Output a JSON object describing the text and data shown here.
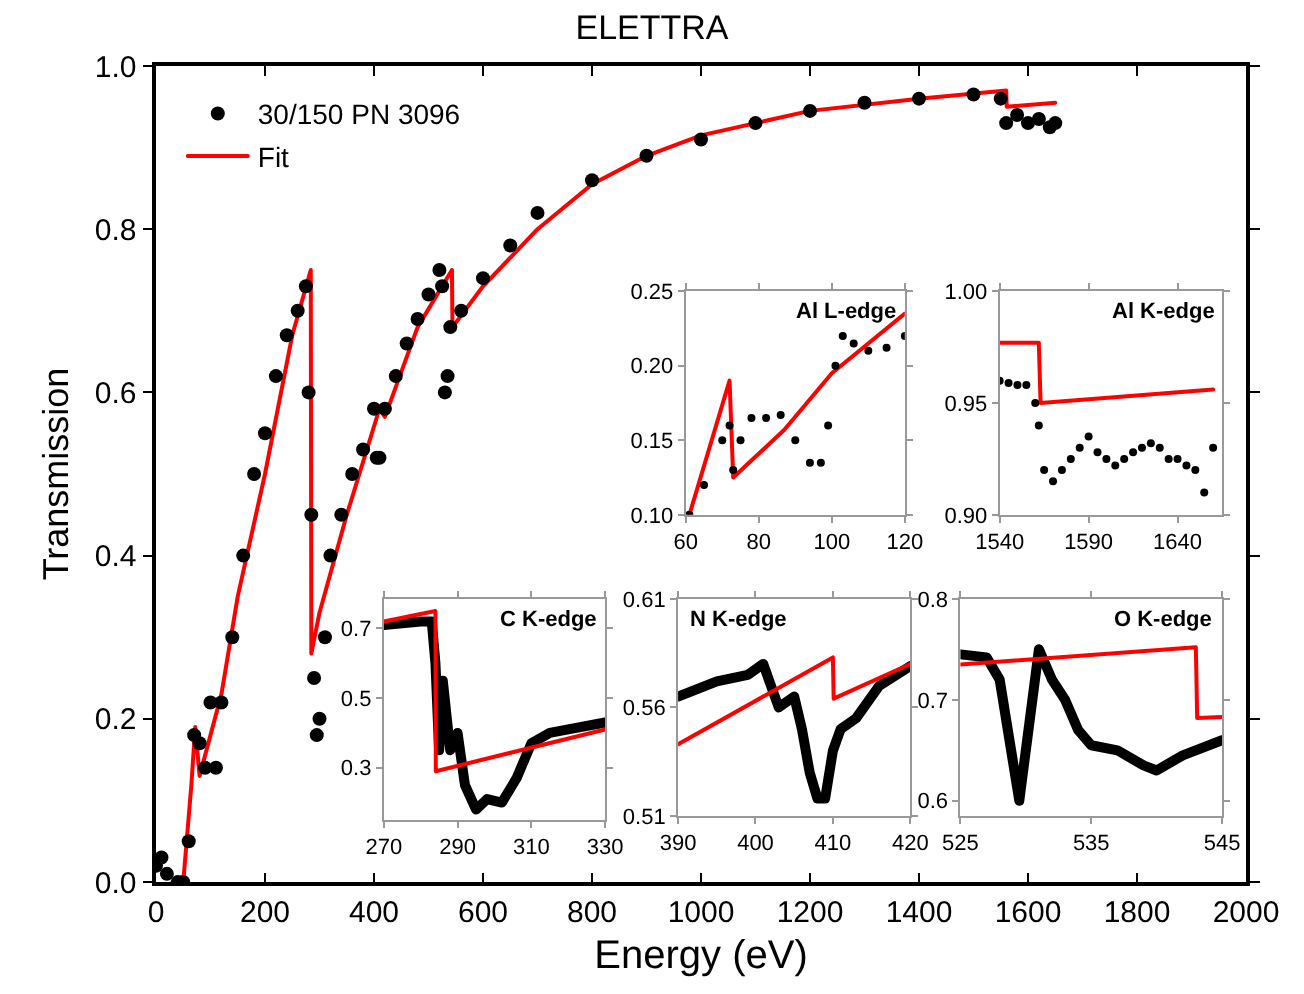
{
  "chart_data": [
    {
      "type": "scatter",
      "title": "ELETTRA",
      "xlabel": "Energy (eV)",
      "ylabel": "Transmission",
      "legend": "top left",
      "grid": false,
      "xlim": [
        0,
        2000
      ],
      "ylim": [
        0,
        1.0
      ],
      "xticks": [
        0,
        200,
        400,
        600,
        800,
        1000,
        1200,
        1400,
        1600,
        1800,
        2000
      ],
      "yticks": [
        {
          "value": 0,
          "label": "0.0"
        },
        0.2,
        0.4,
        0.6,
        0.8,
        {
          "value": 1.0,
          "label": "1.0"
        }
      ],
      "series": [
        {
          "name": "30/150 PN 3096",
          "marker": "circle",
          "color": "#000000",
          "x": [
            0,
            10,
            20,
            40,
            50,
            60,
            70,
            80,
            90,
            100,
            110,
            120,
            140,
            160,
            180,
            200,
            220,
            240,
            260,
            275,
            280,
            285,
            290,
            295,
            300,
            310,
            320,
            340,
            360,
            380,
            400,
            405,
            410,
            420,
            440,
            460,
            480,
            500,
            520,
            525,
            530,
            535,
            540,
            560,
            600,
            650,
            700,
            800,
            900,
            1000,
            1100,
            1200,
            1300,
            1400,
            1500,
            1550,
            1560,
            1580,
            1600,
            1620,
            1640,
            1650
          ],
          "values": [
            0.02,
            0.03,
            0.01,
            0.0,
            0.0,
            0.05,
            0.18,
            0.17,
            0.14,
            0.22,
            0.14,
            0.22,
            0.3,
            0.4,
            0.5,
            0.55,
            0.62,
            0.67,
            0.7,
            0.73,
            0.6,
            0.45,
            0.25,
            0.18,
            0.2,
            0.3,
            0.4,
            0.45,
            0.5,
            0.53,
            0.58,
            0.52,
            0.52,
            0.58,
            0.62,
            0.66,
            0.69,
            0.72,
            0.75,
            0.73,
            0.6,
            0.62,
            0.68,
            0.7,
            0.74,
            0.78,
            0.82,
            0.86,
            0.89,
            0.91,
            0.93,
            0.945,
            0.955,
            0.96,
            0.965,
            0.96,
            0.93,
            0.94,
            0.93,
            0.935,
            0.925,
            0.93
          ]
        },
        {
          "name": "Fit",
          "type": "line",
          "color": "#ff0000",
          "x": [
            30,
            50,
            65,
            72,
            80,
            100,
            120,
            150,
            200,
            250,
            284,
            285,
            300,
            350,
            410,
            420,
            480,
            543,
            544,
            600,
            700,
            800,
            900,
            1000,
            1200,
            1400,
            1560,
            1561,
            1650
          ],
          "values": [
            0.0,
            0.0,
            0.12,
            0.19,
            0.13,
            0.18,
            0.23,
            0.35,
            0.5,
            0.67,
            0.75,
            0.28,
            0.33,
            0.45,
            0.58,
            0.57,
            0.68,
            0.75,
            0.68,
            0.73,
            0.8,
            0.855,
            0.89,
            0.915,
            0.945,
            0.96,
            0.97,
            0.95,
            0.955
          ]
        }
      ]
    },
    {
      "type": "scatter",
      "title": "Al L-edge",
      "grid": false,
      "xlim": [
        60,
        120
      ],
      "ylim": [
        0.1,
        0.25
      ],
      "xticks": [
        60,
        80,
        100,
        120
      ],
      "yticks": [
        {
          "value": 0.1,
          "label": "0.10"
        },
        0.15,
        {
          "value": 0.2,
          "label": "0.20"
        },
        0.25
      ],
      "series": [
        {
          "marker": "circle",
          "color": "#000000",
          "x": [
            61,
            65,
            70,
            72,
            73,
            75,
            78,
            82,
            86,
            90,
            94,
            97,
            99,
            101,
            103,
            106,
            110,
            115,
            120
          ],
          "values": [
            0.1,
            0.12,
            0.15,
            0.16,
            0.13,
            0.15,
            0.165,
            0.165,
            0.167,
            0.15,
            0.135,
            0.135,
            0.16,
            0.2,
            0.22,
            0.215,
            0.21,
            0.212,
            0.22
          ]
        },
        {
          "type": "line",
          "color": "#ff0000",
          "x": [
            61,
            72,
            73,
            87,
            100,
            120
          ],
          "values": [
            0.1,
            0.19,
            0.125,
            0.157,
            0.195,
            0.235
          ]
        }
      ]
    },
    {
      "type": "scatter",
      "title": "Al K-edge",
      "grid": false,
      "xlim": [
        1540,
        1665
      ],
      "ylim": [
        0.9,
        1.0
      ],
      "xticks": [
        1540,
        1590,
        1640
      ],
      "yticks": [
        {
          "value": 0.9,
          "label": "0.90"
        },
        0.95,
        {
          "value": 1.0,
          "label": "1.00"
        }
      ],
      "series": [
        {
          "marker": "circle",
          "color": "#000000",
          "x": [
            1540,
            1545,
            1550,
            1555,
            1560,
            1562,
            1565,
            1570,
            1575,
            1580,
            1585,
            1590,
            1595,
            1600,
            1605,
            1610,
            1615,
            1620,
            1625,
            1630,
            1635,
            1640,
            1645,
            1650,
            1655,
            1660
          ],
          "values": [
            0.96,
            0.959,
            0.958,
            0.958,
            0.95,
            0.94,
            0.92,
            0.915,
            0.92,
            0.925,
            0.93,
            0.935,
            0.928,
            0.925,
            0.922,
            0.925,
            0.928,
            0.93,
            0.932,
            0.93,
            0.925,
            0.925,
            0.922,
            0.92,
            0.91,
            0.93
          ]
        },
        {
          "type": "line",
          "color": "#ff0000",
          "x": [
            1540,
            1562,
            1563,
            1660
          ],
          "values": [
            0.977,
            0.977,
            0.95,
            0.956
          ]
        }
      ]
    },
    {
      "type": "line",
      "title": "C K-edge",
      "grid": false,
      "xlim": [
        270,
        330
      ],
      "ylim": [
        0.15,
        0.785
      ],
      "xticks": [
        270,
        290,
        310,
        330
      ],
      "yticks": [
        0.3,
        0.5,
        0.7
      ],
      "series": [
        {
          "color": "#000000",
          "x": [
            270,
            280,
            283,
            284,
            285,
            286,
            288,
            290,
            292,
            295,
            298,
            302,
            306,
            310,
            315,
            320,
            330
          ],
          "values": [
            0.71,
            0.72,
            0.72,
            0.6,
            0.35,
            0.55,
            0.35,
            0.4,
            0.25,
            0.18,
            0.21,
            0.2,
            0.27,
            0.37,
            0.4,
            0.41,
            0.43
          ]
        },
        {
          "color": "#ff0000",
          "x": [
            270,
            284,
            284.1,
            330
          ],
          "values": [
            0.72,
            0.75,
            0.29,
            0.41
          ]
        }
      ]
    },
    {
      "type": "line",
      "title": "N K-edge",
      "grid": false,
      "xlim": [
        390,
        420
      ],
      "ylim": [
        0.51,
        0.61
      ],
      "xticks": [
        390,
        400,
        410,
        420
      ],
      "yticks": [
        0.51,
        0.56,
        0.61
      ],
      "series": [
        {
          "color": "#000000",
          "x": [
            390,
            395,
            399,
            401,
            403,
            405,
            406,
            407,
            408,
            409,
            410,
            411,
            413,
            416,
            420
          ],
          "values": [
            0.565,
            0.572,
            0.575,
            0.58,
            0.56,
            0.565,
            0.55,
            0.53,
            0.518,
            0.518,
            0.54,
            0.55,
            0.555,
            0.57,
            0.579
          ]
        },
        {
          "color": "#ff0000",
          "x": [
            390,
            410,
            410.1,
            420
          ],
          "values": [
            0.543,
            0.583,
            0.564,
            0.58
          ]
        }
      ]
    },
    {
      "type": "line",
      "title": "O K-edge",
      "grid": false,
      "xlim": [
        525,
        545
      ],
      "ylim": [
        0.585,
        0.8
      ],
      "xticks": [
        525,
        535,
        545
      ],
      "yticks": [
        0.6,
        0.7,
        0.8
      ],
      "series": [
        {
          "color": "#000000",
          "x": [
            525,
            527,
            528,
            529,
            529.5,
            530,
            531,
            532,
            533,
            534,
            535,
            537,
            539,
            540,
            542,
            545
          ],
          "values": [
            0.745,
            0.742,
            0.72,
            0.64,
            0.6,
            0.65,
            0.75,
            0.72,
            0.7,
            0.67,
            0.655,
            0.65,
            0.635,
            0.63,
            0.645,
            0.66
          ]
        },
        {
          "color": "#ff0000",
          "x": [
            525,
            543,
            543.1,
            545
          ],
          "values": [
            0.735,
            0.752,
            0.682,
            0.683
          ]
        }
      ]
    }
  ]
}
